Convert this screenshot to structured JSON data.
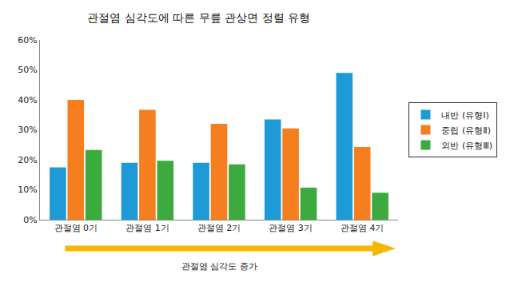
{
  "chart_data": {
    "type": "bar",
    "title": "관절염 심각도에 따른 무릎 관상면 정렬 유형",
    "xlabel": "관절염 심각도 증가",
    "categories": [
      "관절염 0기",
      "관절염 1기",
      "관절염 2기",
      "관절염 3기",
      "관절염 4기"
    ],
    "series": [
      {
        "name": "내반 (유형Ⅰ)",
        "color": "#1E9BD7",
        "values": [
          17.5,
          19,
          19,
          33.5,
          49
        ]
      },
      {
        "name": "중립 (유형Ⅱ)",
        "color": "#F57F1F",
        "values": [
          40,
          36.7,
          32,
          30.5,
          24.3
        ]
      },
      {
        "name": "외반 (유형Ⅲ)",
        "color": "#3DAA3F",
        "values": [
          23.3,
          19.7,
          18.5,
          10.7,
          9
        ]
      }
    ],
    "ylim": [
      0,
      60
    ],
    "yticks": [
      {
        "value": 0,
        "label": "0%"
      },
      {
        "value": 10,
        "label": "10%"
      },
      {
        "value": 20,
        "label": "20%"
      },
      {
        "value": 30,
        "label": "30%"
      },
      {
        "value": 40,
        "label": "40%"
      },
      {
        "value": 50,
        "label": "50%"
      },
      {
        "value": 60,
        "label": "60%"
      }
    ],
    "grid": false,
    "legend": "right"
  }
}
